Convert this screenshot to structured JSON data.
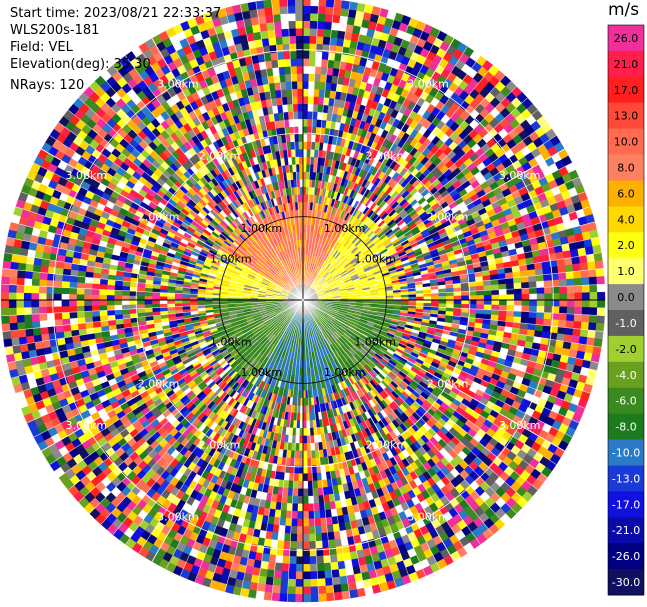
{
  "header": {
    "start_time": "Start time: 2023/08/21 22:33:37",
    "instrument": "WLS200s-181",
    "field": "Field: VEL",
    "elevation": "Elevation(deg): 35.30",
    "nrays": "NRays: 120"
  },
  "colorbar": {
    "unit": "m/s",
    "ticks": [
      "26.0",
      "21.0",
      "17.0",
      "13.0",
      "10.0",
      "8.0",
      "6.0",
      "4.0",
      "2.0",
      "1.0",
      "0.0",
      "-1.0",
      "-2.0",
      "-4.0",
      "-6.0",
      "-8.0",
      "-10.0",
      "-13.0",
      "-17.0",
      "-21.0",
      "-26.0",
      "-30.0"
    ],
    "colors": [
      "#f0309a",
      "#ff1f4a",
      "#ff1f1f",
      "#ff4a3a",
      "#ff6a50",
      "#ff8060",
      "#ffb000",
      "#ffd800",
      "#ffff10",
      "#ffff70",
      "#8a8a8a",
      "#606060",
      "#a0d030",
      "#6aa020",
      "#3a8a20",
      "#1e7a1e",
      "#2a7ac8",
      "#1a3ad8",
      "#1010e0",
      "#0a0aa8",
      "#000080",
      "#101060"
    ]
  },
  "chart_data": {
    "type": "heatmap",
    "projection": "polar PPI",
    "field": "VEL",
    "unit": "m/s",
    "elevation_deg": 35.3,
    "nrays": 120,
    "range_rings_km": [
      1.0,
      2.0,
      3.0
    ],
    "ring_labels": [
      "1.00km",
      "2.00km",
      "3.00km"
    ],
    "vmin": -30.0,
    "vmax": 26.0,
    "inner_structure": {
      "north_sector_velocity_ms": [
        6.0,
        2.0
      ],
      "south_sector_velocity_ms": [
        -6.0,
        -10.0
      ],
      "clean_echo_range_km": 1.2
    }
  }
}
